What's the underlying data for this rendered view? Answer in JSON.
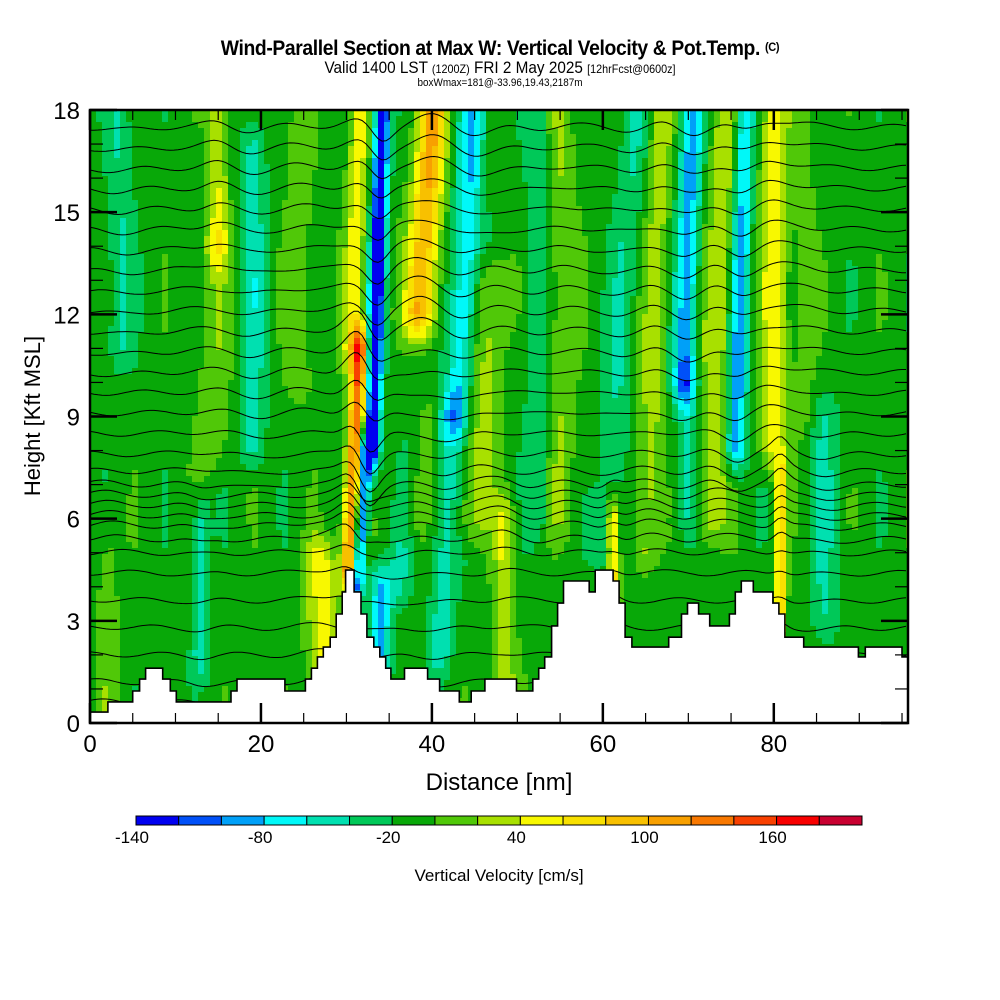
{
  "header": {
    "title": "Wind-Parallel Section at Max W: Vertical Velocity & Pot.Temp.",
    "copyright": "(C)",
    "valid_prefix": "Valid 1400 LST",
    "valid_utc": "(1200Z)",
    "valid_date": "FRI 2 May 2025",
    "forecast": "[12hrFcst@0600z]",
    "box_info": "boxWmax=181@-33.96,19.43,2187m"
  },
  "chart_data": {
    "type": "heatmap",
    "title": "Wind-Parallel Section at Max W: Vertical Velocity & Pot.Temp.",
    "xlabel": "Distance [nm]",
    "ylabel": "Height [Kft MSL]",
    "xlim": [
      0,
      95.7
    ],
    "ylim": [
      0,
      18
    ],
    "x_ticks": [
      "0",
      "20",
      "40",
      "60",
      "80"
    ],
    "x_tick_values": [
      0,
      20,
      40,
      60,
      80
    ],
    "x_minor_step": 5,
    "y_ticks": [
      "0",
      "3",
      "6",
      "9",
      "12",
      "15",
      "18"
    ],
    "y_tick_values": [
      0,
      3,
      6,
      9,
      12,
      15,
      18
    ],
    "y_minor_step": 1,
    "background_w": -10,
    "w_bands": [
      {
        "x0": 33.0,
        "tilt": 0.12,
        "width": 0.9,
        "w": -140,
        "zmin": 8,
        "zmax": 18
      },
      {
        "x0": 31.2,
        "tilt": 0.25,
        "width": 0.8,
        "w": -120,
        "zmin": 4,
        "zmax": 8
      },
      {
        "x0": 30.3,
        "tilt": 0.2,
        "width": 1.0,
        "w": 150,
        "zmin": 4.5,
        "zmax": 11
      },
      {
        "x0": 30.7,
        "tilt": 0.12,
        "width": 1.2,
        "w": 60,
        "zmin": 11,
        "zmax": 18
      },
      {
        "x0": 36.0,
        "tilt": 0.55,
        "width": 1.5,
        "w": -30,
        "zmin": 4,
        "zmax": 12
      },
      {
        "x0": 38.0,
        "tilt": 0.35,
        "width": 1.5,
        "w": 40,
        "zmin": 6,
        "zmax": 12
      },
      {
        "x0": 38.5,
        "tilt": 0.28,
        "width": 1.8,
        "w": 110,
        "zmin": 12,
        "zmax": 18
      },
      {
        "x0": 43.0,
        "tilt": 0.2,
        "width": 1.6,
        "w": -70,
        "zmin": 9,
        "zmax": 18
      },
      {
        "x0": 41.0,
        "tilt": 0.15,
        "width": 1.5,
        "w": -40,
        "zmin": 2,
        "zmax": 9
      },
      {
        "x0": 48.5,
        "tilt": 0.0,
        "width": 1.2,
        "w": 50,
        "zmin": 1.2,
        "zmax": 6
      },
      {
        "x0": 45.0,
        "tilt": 0.3,
        "width": 2.0,
        "w": 40,
        "zmin": 6,
        "zmax": 13
      },
      {
        "x0": 52.5,
        "tilt": 0.0,
        "width": 1.5,
        "w": -30,
        "zmin": 6,
        "zmax": 18
      },
      {
        "x0": 55.0,
        "tilt": 0.0,
        "width": 1.8,
        "w": 30,
        "zmin": 6,
        "zmax": 18
      },
      {
        "x0": 60.5,
        "tilt": 0.25,
        "width": 1.6,
        "w": -30,
        "zmin": 5,
        "zmax": 18
      },
      {
        "x0": 61.2,
        "tilt": 0.0,
        "width": 0.7,
        "w": 80,
        "zmin": 3,
        "zmax": 6
      },
      {
        "x0": 65.0,
        "tilt": 0.15,
        "width": 1.4,
        "w": 40,
        "zmin": 5,
        "zmax": 18
      },
      {
        "x0": 69.5,
        "tilt": 0.12,
        "width": 1.3,
        "w": -80,
        "zmin": 10,
        "zmax": 18
      },
      {
        "x0": 70.0,
        "tilt": 0.0,
        "width": 1.4,
        "w": -40,
        "zmin": 6,
        "zmax": 10
      },
      {
        "x0": 72.5,
        "tilt": 0.2,
        "width": 2.0,
        "w": 50,
        "zmin": 6,
        "zmax": 18
      },
      {
        "x0": 75.5,
        "tilt": 0.1,
        "width": 1.2,
        "w": -90,
        "zmin": 8,
        "zmax": 18
      },
      {
        "x0": 80.0,
        "tilt": 0.0,
        "width": 1.6,
        "w": 60,
        "zmin": 8,
        "zmax": 18
      },
      {
        "x0": 80.8,
        "tilt": 0.0,
        "width": 0.6,
        "w": 90,
        "zmin": 3,
        "zmax": 7
      },
      {
        "x0": 83.5,
        "tilt": 0.0,
        "width": 1.3,
        "w": 20,
        "zmin": 9,
        "zmax": 18
      },
      {
        "x0": 86.0,
        "tilt": 0.0,
        "width": 1.6,
        "w": -30,
        "zmin": 3,
        "zmax": 9
      },
      {
        "x0": 15.0,
        "tilt": 0.0,
        "width": 1.2,
        "w": 50,
        "zmin": 14,
        "zmax": 18
      },
      {
        "x0": 14.5,
        "tilt": 0.0,
        "width": 2.0,
        "w": 25,
        "zmin": 8,
        "zmax": 14
      },
      {
        "x0": 19.0,
        "tilt": 0.0,
        "width": 1.5,
        "w": -40,
        "zmin": 8,
        "zmax": 17
      },
      {
        "x0": 24.5,
        "tilt": 0.0,
        "width": 1.6,
        "w": 25,
        "zmin": 10,
        "zmax": 18
      },
      {
        "x0": 3.5,
        "tilt": 0.0,
        "width": 1.5,
        "w": -30,
        "zmin": 11,
        "zmax": 18
      },
      {
        "x0": 26.5,
        "tilt": 0.0,
        "width": 1.4,
        "w": 45,
        "zmin": 1,
        "zmax": 5
      },
      {
        "x0": 28.0,
        "tilt": 0.0,
        "width": 1.0,
        "w": 40,
        "zmin": 1.5,
        "zmax": 4.5
      },
      {
        "x0": 34.0,
        "tilt": 0.0,
        "width": 1.2,
        "w": -70,
        "zmin": 1.5,
        "zmax": 4
      },
      {
        "x0": 13.0,
        "tilt": 0.0,
        "width": 1.0,
        "w": -40,
        "zmin": 2,
        "zmax": 6
      },
      {
        "x0": 2.0,
        "tilt": 0.0,
        "width": 1.5,
        "w": 20,
        "zmin": 0.3,
        "zmax": 6
      }
    ],
    "isentrope_levels_kft": [
      0.6,
      1.2,
      2.0,
      2.8,
      3.6,
      4.4,
      5.0,
      5.4,
      5.8,
      6.1,
      6.4,
      6.7,
      7.0,
      7.4,
      7.9,
      8.5,
      9.1,
      9.7,
      10.3,
      10.9,
      11.5,
      12.1,
      12.7,
      13.3,
      13.9,
      14.5,
      15.1,
      15.7,
      16.3,
      16.9,
      17.5
    ],
    "terrain": [
      [
        0,
        0.32
      ],
      [
        2.1,
        0.62
      ],
      [
        5.0,
        0.94
      ],
      [
        5.8,
        1.29
      ],
      [
        6.5,
        1.61
      ],
      [
        8.5,
        1.29
      ],
      [
        9.4,
        0.94
      ],
      [
        10.1,
        0.62
      ],
      [
        16.5,
        0.94
      ],
      [
        17.2,
        1.29
      ],
      [
        22.8,
        0.94
      ],
      [
        25.2,
        1.29
      ],
      [
        25.9,
        1.61
      ],
      [
        26.6,
        1.94
      ],
      [
        27.3,
        2.23
      ],
      [
        28.1,
        2.52
      ],
      [
        28.8,
        3.2
      ],
      [
        29.5,
        3.85
      ],
      [
        29.9,
        4.49
      ],
      [
        30.9,
        3.85
      ],
      [
        31.7,
        3.2
      ],
      [
        32.4,
        2.52
      ],
      [
        33.2,
        2.23
      ],
      [
        33.9,
        1.94
      ],
      [
        34.6,
        1.61
      ],
      [
        35.2,
        1.29
      ],
      [
        36.8,
        1.61
      ],
      [
        39.5,
        1.29
      ],
      [
        40.9,
        0.94
      ],
      [
        43.2,
        0.62
      ],
      [
        44.6,
        0.94
      ],
      [
        46.2,
        1.29
      ],
      [
        48.9,
        1.29
      ],
      [
        49.9,
        0.94
      ],
      [
        51.8,
        1.29
      ],
      [
        52.5,
        1.61
      ],
      [
        53.2,
        1.94
      ],
      [
        54.0,
        2.85
      ],
      [
        54.7,
        3.52
      ],
      [
        55.4,
        4.17
      ],
      [
        58.4,
        3.85
      ],
      [
        59.1,
        4.49
      ],
      [
        61.2,
        4.17
      ],
      [
        61.9,
        3.52
      ],
      [
        62.6,
        2.52
      ],
      [
        63.4,
        2.23
      ],
      [
        67.7,
        2.52
      ],
      [
        69.2,
        3.2
      ],
      [
        69.9,
        3.52
      ],
      [
        71.2,
        3.2
      ],
      [
        72.5,
        2.85
      ],
      [
        74.8,
        3.2
      ],
      [
        75.5,
        3.85
      ],
      [
        76.2,
        4.17
      ],
      [
        77.6,
        3.85
      ],
      [
        79.9,
        3.52
      ],
      [
        80.6,
        3.2
      ],
      [
        81.3,
        2.52
      ],
      [
        83.5,
        2.23
      ],
      [
        89.9,
        1.94
      ],
      [
        90.7,
        2.23
      ],
      [
        95.0,
        1.94
      ],
      [
        95.7,
        1.94
      ]
    ],
    "colorbar": {
      "label": "Vertical Velocity [cm/s]",
      "boundaries": [
        -140,
        -120,
        -100,
        -80,
        -60,
        -40,
        -20,
        0,
        20,
        40,
        60,
        80,
        100,
        120,
        140,
        160,
        180,
        200
      ],
      "tick_labels": [
        "-140",
        "-80",
        "-20",
        "40",
        "100",
        "160"
      ],
      "tick_values": [
        -140,
        -80,
        -20,
        40,
        100,
        160
      ],
      "colors": [
        "#0000f0",
        "#0050f8",
        "#00a0f8",
        "#00f8f8",
        "#00e0b0",
        "#00c858",
        "#08a808",
        "#50c808",
        "#a8e000",
        "#f8f800",
        "#f8e000",
        "#f8c000",
        "#f8a000",
        "#f87800",
        "#f84000",
        "#f80000",
        "#c80030"
      ]
    }
  }
}
